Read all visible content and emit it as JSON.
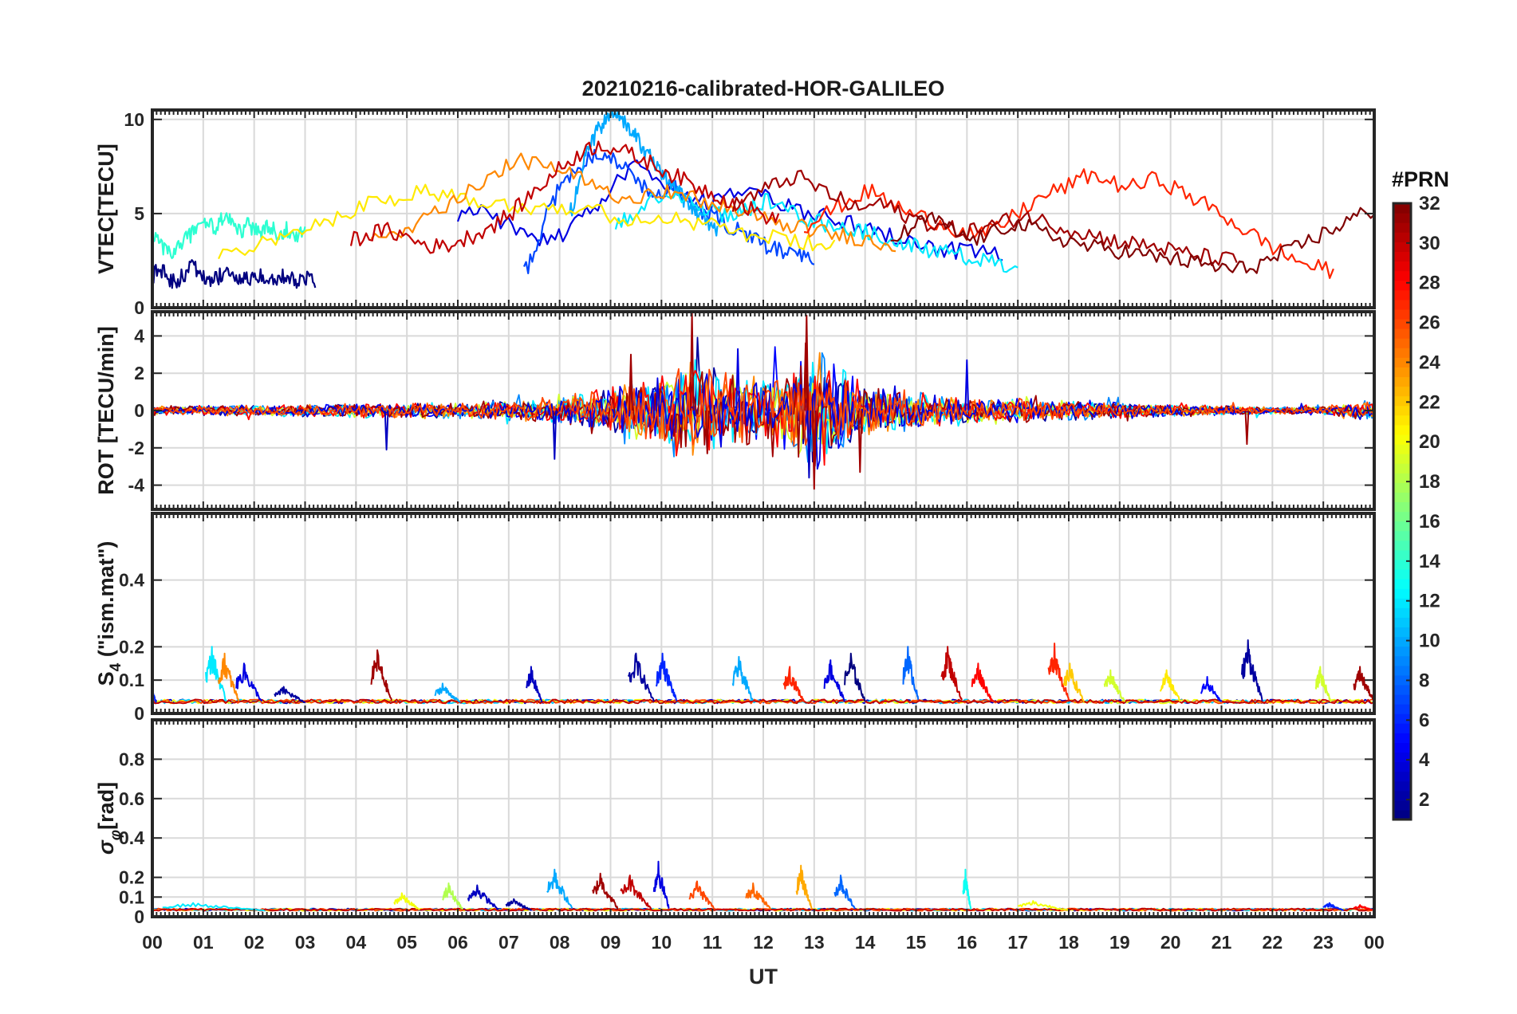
{
  "chart_data": {
    "type": "line",
    "title": "20210216-calibrated-HOR-GALILEO",
    "xlabel": "UT",
    "x_tick_labels": [
      "00",
      "01",
      "02",
      "03",
      "04",
      "05",
      "06",
      "07",
      "08",
      "09",
      "10",
      "11",
      "12",
      "13",
      "14",
      "15",
      "16",
      "17",
      "18",
      "19",
      "20",
      "21",
      "22",
      "23",
      "00"
    ],
    "xlim": [
      0,
      24
    ],
    "colorbar": {
      "title": "#PRN",
      "range": [
        1,
        32
      ],
      "tick_values": [
        2,
        4,
        6,
        8,
        10,
        12,
        14,
        16,
        18,
        20,
        22,
        24,
        26,
        28,
        30,
        32
      ],
      "tick_labels": [
        "2",
        "4",
        "6",
        "8",
        "10",
        "12",
        "14",
        "16",
        "18",
        "20",
        "22",
        "24",
        "26",
        "28",
        "30",
        "32"
      ],
      "colormap": "jet"
    },
    "panels": [
      {
        "id": "vtec",
        "ylabel": "VTEC[TECU]",
        "ylim": [
          0,
          10.5
        ],
        "y_ticks": [
          0,
          5,
          10
        ],
        "y_tick_labels": [
          "0",
          "5",
          "10"
        ],
        "series_prn": [
          1,
          4,
          7,
          10,
          12,
          14,
          21,
          24,
          27,
          30,
          31,
          33
        ],
        "series_windows": [
          [
            0,
            3.2
          ],
          [
            6,
            16.7
          ],
          [
            7.3,
            13
          ],
          [
            8.2,
            11.1
          ],
          [
            9.1,
            17
          ],
          [
            0,
            3
          ],
          [
            1.3,
            13.4
          ],
          [
            4.3,
            14.6
          ],
          [
            12.8,
            23.2
          ],
          [
            3.9,
            12.3
          ],
          [
            11.4,
            21.3
          ],
          [
            14.5,
            24
          ]
        ],
        "series_values": [
          [
            1.7,
            2.1,
            1.8,
            1.4,
            1.5,
            1.9,
            2.2,
            1.8,
            1.6,
            1.5,
            1.7,
            1.9,
            1.6,
            1.4,
            1.5,
            1.8,
            1.7,
            1.6,
            1.5,
            1.6,
            1.7,
            1.5,
            1.4,
            1.6,
            1.5
          ],
          [
            4.8,
            5.1,
            4.6,
            3.9,
            3.5,
            4.2,
            5.3,
            6.8,
            7.5,
            6.4,
            6.1,
            5.5,
            5.9,
            6.3,
            5.6,
            5.2,
            4.9,
            4.6,
            4.2,
            3.9,
            3.5,
            3.2,
            3.0,
            2.9,
            2.7
          ],
          [
            1.8,
            3.0,
            5.2,
            6.4,
            7.2,
            7.8,
            8.3,
            8.1,
            7.6,
            7.0,
            6.4,
            5.9,
            6.5,
            6.1,
            5.4,
            5.0,
            4.7,
            4.3,
            4.0,
            3.6,
            3.3,
            3.1,
            2.9,
            2.6,
            2.5
          ],
          [
            5.0,
            6.0,
            7.4,
            8.6,
            9.1,
            9.6,
            10.0,
            10.4,
            10.3,
            9.8,
            9.5,
            9.1,
            8.4,
            8.0,
            7.4,
            7.0,
            6.7,
            6.3,
            6.0,
            5.6,
            5.3,
            5.0,
            4.7,
            4.4,
            4.1
          ],
          [
            4.3,
            4.9,
            5.6,
            6.1,
            5.8,
            5.4,
            5.1,
            4.8,
            5.3,
            5.7,
            5.2,
            4.9,
            4.6,
            4.3,
            4.2,
            4.0,
            3.7,
            3.4,
            3.3,
            3.0,
            2.9,
            2.6,
            2.5,
            2.3,
            2.2
          ],
          [
            3.8,
            3.4,
            3.0,
            2.8,
            3.2,
            3.6,
            3.9,
            4.3,
            4.6,
            4.4,
            4.1,
            4.8,
            4.6,
            4.3,
            4.1,
            4.4,
            4.2,
            4.0,
            4.3,
            4.1,
            3.9,
            4.2,
            4.0,
            3.9,
            4.1
          ],
          [
            2.6,
            3.1,
            3.5,
            3.9,
            4.5,
            5.1,
            5.6,
            5.9,
            6.2,
            6.0,
            5.8,
            5.6,
            5.3,
            5.5,
            5.2,
            5.0,
            4.7,
            4.9,
            4.6,
            4.4,
            4.1,
            3.8,
            3.6,
            3.4,
            3.3
          ],
          [
            3.4,
            3.9,
            4.5,
            5.2,
            5.9,
            6.7,
            7.4,
            7.8,
            7.5,
            7.1,
            6.6,
            6.1,
            5.8,
            6.3,
            6.0,
            5.7,
            5.4,
            5.0,
            4.7,
            4.4,
            4.2,
            3.9,
            3.8,
            3.5,
            3.3
          ],
          [
            4.3,
            5.0,
            5.7,
            6.2,
            5.5,
            4.9,
            4.6,
            4.1,
            3.8,
            4.4,
            5.3,
            6.0,
            6.5,
            7.1,
            6.6,
            6.4,
            6.9,
            6.2,
            5.6,
            4.9,
            4.1,
            3.4,
            2.7,
            2.2,
            1.9
          ],
          [
            3.6,
            3.9,
            4.1,
            3.8,
            3.4,
            3.2,
            3.5,
            3.9,
            4.4,
            5.0,
            5.9,
            6.8,
            7.6,
            8.3,
            8.7,
            8.4,
            8.0,
            7.6,
            7.1,
            6.6,
            6.2,
            5.8,
            5.4,
            5.0,
            4.6
          ],
          [
            5.5,
            6.0,
            6.5,
            7.0,
            6.4,
            5.8,
            5.2,
            5.6,
            5.0,
            4.6,
            4.3,
            4.0,
            4.3,
            4.6,
            4.9,
            4.5,
            4.2,
            3.9,
            3.6,
            3.4,
            3.3,
            3.0,
            2.8,
            2.6,
            2.5
          ],
          [
            3.5,
            4.2,
            4.8,
            4.1,
            3.6,
            3.9,
            4.5,
            4.2,
            3.8,
            3.5,
            3.2,
            3.1,
            2.9,
            2.7,
            2.6,
            2.4,
            2.2,
            2.0,
            2.2,
            2.6,
            3.1,
            3.7,
            4.2,
            4.8,
            5.2
          ]
        ]
      },
      {
        "id": "rot",
        "ylabel": "ROT [TECU/min]",
        "ylim": [
          -5.3,
          5.3
        ],
        "y_ticks": [
          -4,
          -2,
          0,
          2,
          4
        ],
        "y_tick_labels": [
          "-4",
          "-2",
          "0",
          "2",
          "4"
        ],
        "activity_profile_hours": [
          0,
          2,
          4,
          6,
          7,
          8,
          9,
          10,
          10.5,
          11,
          12,
          12.5,
          13,
          13.5,
          14,
          15,
          16,
          17,
          18,
          19,
          20,
          21,
          22,
          23,
          24
        ],
        "activity_profile_amplitude": [
          0.25,
          0.3,
          0.4,
          0.45,
          0.55,
          0.8,
          1.4,
          2.2,
          3.0,
          2.4,
          1.8,
          2.4,
          3.4,
          2.6,
          1.5,
          1.0,
          0.8,
          0.7,
          0.55,
          0.45,
          0.35,
          0.3,
          0.2,
          0.25,
          0.6
        ],
        "peaks": [
          {
            "hour": 10.6,
            "value": 5.2
          },
          {
            "hour": 10.9,
            "value": -2.3
          },
          {
            "hour": 12.85,
            "value": 5.1
          },
          {
            "hour": 13.0,
            "value": -4.2
          },
          {
            "hour": 12.9,
            "value": -3.6
          },
          {
            "hour": 13.9,
            "value": -3.3
          },
          {
            "hour": 9.4,
            "value": 3.0
          },
          {
            "hour": 11.5,
            "value": 3.3
          },
          {
            "hour": 4.6,
            "value": -2.1
          },
          {
            "hour": 21.5,
            "value": -1.8
          },
          {
            "hour": 7.9,
            "value": -2.6
          },
          {
            "hour": 16.0,
            "value": 2.7
          }
        ]
      },
      {
        "id": "s4",
        "ylabel": "S_4 (\"ism.mat\")",
        "ylabel_main": "S",
        "ylabel_sub": "4",
        "ylabel_rest": " (\"ism.mat\")",
        "ylim": [
          0,
          0.6
        ],
        "y_ticks": [
          0,
          0.1,
          0.2,
          0.4
        ],
        "y_tick_labels": [
          "0",
          "0.1",
          "0.2",
          "0.4"
        ],
        "baseline": 0.03,
        "bursts": [
          {
            "hour": 0.0,
            "peak": 0.09,
            "width": 0.15,
            "prn": 6
          },
          {
            "hour": 1.25,
            "peak": 0.2,
            "width": 0.4,
            "prn": 12
          },
          {
            "hour": 1.5,
            "peak": 0.18,
            "width": 0.4,
            "prn": 24
          },
          {
            "hour": 1.9,
            "peak": 0.15,
            "width": 0.5,
            "prn": 4
          },
          {
            "hour": 2.7,
            "peak": 0.08,
            "width": 0.6,
            "prn": 2
          },
          {
            "hour": 4.5,
            "peak": 0.19,
            "width": 0.4,
            "prn": 31
          },
          {
            "hour": 5.8,
            "peak": 0.09,
            "width": 0.5,
            "prn": 10
          },
          {
            "hour": 7.5,
            "peak": 0.14,
            "width": 0.3,
            "prn": 3
          },
          {
            "hour": 9.6,
            "peak": 0.18,
            "width": 0.5,
            "prn": 2
          },
          {
            "hour": 10.1,
            "peak": 0.18,
            "width": 0.4,
            "prn": 6
          },
          {
            "hour": 11.6,
            "peak": 0.17,
            "width": 0.4,
            "prn": 10
          },
          {
            "hour": 12.6,
            "peak": 0.14,
            "width": 0.4,
            "prn": 27
          },
          {
            "hour": 13.4,
            "peak": 0.16,
            "width": 0.4,
            "prn": 4
          },
          {
            "hour": 13.8,
            "peak": 0.18,
            "width": 0.4,
            "prn": 1
          },
          {
            "hour": 14.9,
            "peak": 0.2,
            "width": 0.3,
            "prn": 8
          },
          {
            "hour": 15.7,
            "peak": 0.2,
            "width": 0.4,
            "prn": 30
          },
          {
            "hour": 16.3,
            "peak": 0.15,
            "width": 0.4,
            "prn": 28
          },
          {
            "hour": 17.8,
            "peak": 0.21,
            "width": 0.4,
            "prn": 27
          },
          {
            "hour": 18.1,
            "peak": 0.15,
            "width": 0.4,
            "prn": 22
          },
          {
            "hour": 18.9,
            "peak": 0.13,
            "width": 0.4,
            "prn": 19
          },
          {
            "hour": 20.0,
            "peak": 0.13,
            "width": 0.4,
            "prn": 21
          },
          {
            "hour": 20.8,
            "peak": 0.11,
            "width": 0.4,
            "prn": 5
          },
          {
            "hour": 21.6,
            "peak": 0.22,
            "width": 0.4,
            "prn": 2
          },
          {
            "hour": 23.0,
            "peak": 0.14,
            "width": 0.3,
            "prn": 19
          },
          {
            "hour": 23.8,
            "peak": 0.14,
            "width": 0.4,
            "prn": 31
          }
        ]
      },
      {
        "id": "sigma_phi",
        "ylabel": "σ_φ[rad]",
        "ylabel_main": "σ",
        "ylabel_sub": "φ",
        "ylabel_rest": "[rad]",
        "ylim": [
          0,
          1.0
        ],
        "y_ticks": [
          0,
          0.1,
          0.2,
          0.4,
          0.6,
          0.8
        ],
        "y_tick_labels": [
          "0",
          "0.1",
          "0.2",
          "0.4",
          "0.6",
          "0.8"
        ],
        "baseline": 0.03,
        "bursts": [
          {
            "hour": 1.2,
            "peak": 0.07,
            "width": 2.0,
            "prn": 12
          },
          {
            "hour": 5.0,
            "peak": 0.12,
            "width": 0.5,
            "prn": 20
          },
          {
            "hour": 5.9,
            "peak": 0.17,
            "width": 0.4,
            "prn": 18
          },
          {
            "hour": 6.5,
            "peak": 0.16,
            "width": 0.6,
            "prn": 3
          },
          {
            "hour": 7.2,
            "peak": 0.09,
            "width": 0.5,
            "prn": 2
          },
          {
            "hour": 8.0,
            "peak": 0.24,
            "width": 0.5,
            "prn": 10
          },
          {
            "hour": 8.9,
            "peak": 0.22,
            "width": 0.5,
            "prn": 31
          },
          {
            "hour": 9.5,
            "peak": 0.21,
            "width": 0.6,
            "prn": 30
          },
          {
            "hour": 10.0,
            "peak": 0.28,
            "width": 0.3,
            "prn": 4
          },
          {
            "hour": 10.8,
            "peak": 0.18,
            "width": 0.5,
            "prn": 26
          },
          {
            "hour": 11.9,
            "peak": 0.17,
            "width": 0.5,
            "prn": 25
          },
          {
            "hour": 12.8,
            "peak": 0.26,
            "width": 0.3,
            "prn": 23
          },
          {
            "hour": 13.6,
            "peak": 0.21,
            "width": 0.4,
            "prn": 8
          },
          {
            "hour": 16.0,
            "peak": 0.24,
            "width": 0.15,
            "prn": 13
          },
          {
            "hour": 17.5,
            "peak": 0.08,
            "width": 1.0,
            "prn": 20
          },
          {
            "hour": 23.2,
            "peak": 0.07,
            "width": 0.4,
            "prn": 6
          },
          {
            "hour": 23.8,
            "peak": 0.06,
            "width": 0.4,
            "prn": 28
          }
        ]
      }
    ]
  }
}
